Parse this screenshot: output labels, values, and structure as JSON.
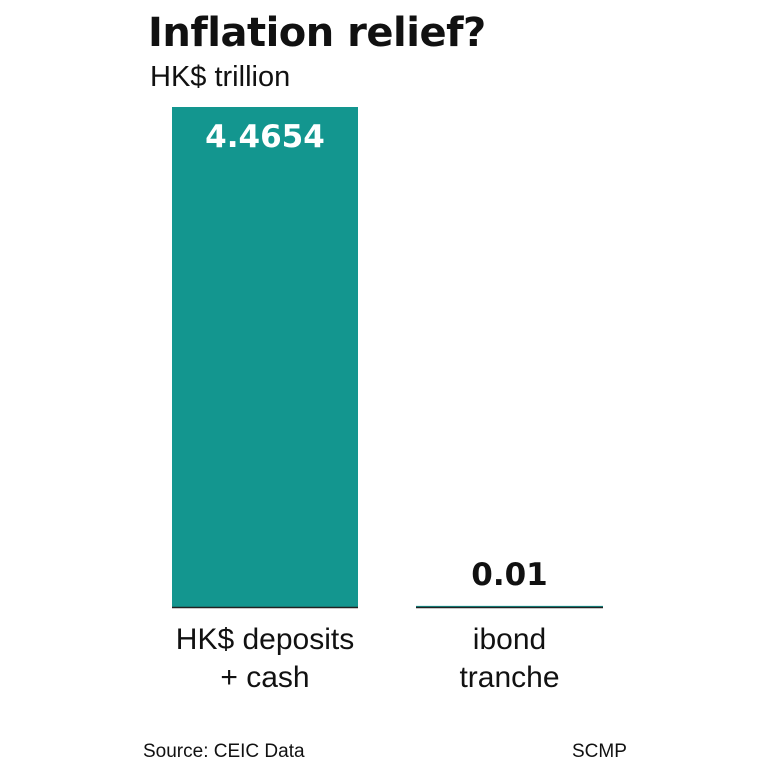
{
  "header": {
    "title": "Inflation relief?",
    "subtitle": "HK$ trillion"
  },
  "footer": {
    "source": "Source: CEIC Data",
    "credit": "SCMP"
  },
  "colors": {
    "bar": "#13968f",
    "bar_label_on_bar": "#ffffff",
    "bar_label_above": "#111111",
    "baseline": "#222222"
  },
  "chart_data": {
    "type": "bar",
    "title": "Inflation relief?",
    "subtitle": "HK$ trillion",
    "categories": [
      [
        "HK$ deposits",
        "+ cash"
      ],
      [
        "ibond",
        "tranche"
      ]
    ],
    "values": [
      4.4654,
      0.01
    ],
    "value_labels": [
      "4.4654",
      "0.01"
    ],
    "unit": "HK$ trillion",
    "ylim": [
      0,
      4.4654
    ],
    "grid": false,
    "legend": "none"
  }
}
